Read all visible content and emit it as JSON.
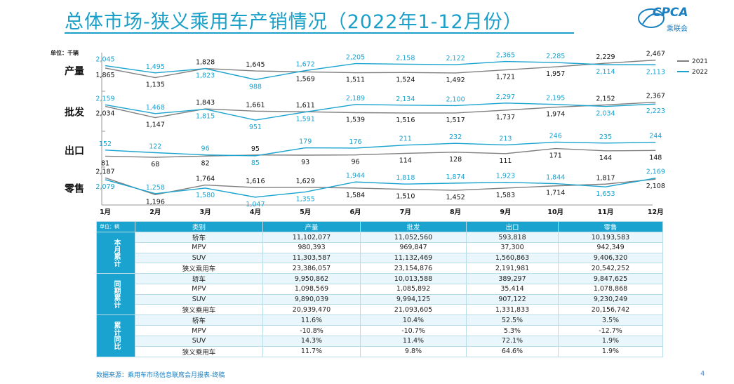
{
  "title": "总体市场-狭义乘用车产销情况（2022年1-12月份）",
  "logo": {
    "main": "CPCA",
    "sub": "乘联会"
  },
  "unit_top": "单位：千辆",
  "legend": [
    {
      "name": "2021",
      "color": "#7f7f7f"
    },
    {
      "name": "2022",
      "color": "#1aa3cf"
    }
  ],
  "months": [
    "1月",
    "2月",
    "3月",
    "4月",
    "5月",
    "6月",
    "7月",
    "8月",
    "9月",
    "10月",
    "11月",
    "12月"
  ],
  "chart_data": {
    "type": "line",
    "categories": [
      "1月",
      "2月",
      "3月",
      "4月",
      "5月",
      "6月",
      "7月",
      "8月",
      "9月",
      "10月",
      "11月",
      "12月"
    ],
    "panels": [
      {
        "label": "产量",
        "series": [
          {
            "name": "2021",
            "values": [
              1865,
              1135,
              1828,
              1645,
              1569,
              1511,
              1524,
              1492,
              1721,
              1957,
              2229,
              2467
            ]
          },
          {
            "name": "2022",
            "values": [
              2045,
              1495,
              1823,
              988,
              1672,
              2205,
              2158,
              2122,
              2365,
              2285,
              2114,
              2113
            ]
          }
        ]
      },
      {
        "label": "批发",
        "series": [
          {
            "name": "2021",
            "values": [
              2034,
              1147,
              1843,
              1661,
              1611,
              1539,
              1516,
              1517,
              1737,
              1974,
              2152,
              2367
            ]
          },
          {
            "name": "2022",
            "values": [
              2159,
              1468,
              1815,
              951,
              1591,
              2189,
              2134,
              2100,
              2297,
              2195,
              2034,
              2223
            ]
          }
        ]
      },
      {
        "label": "出口",
        "series": [
          {
            "name": "2021",
            "values": [
              81,
              68,
              82,
              95,
              93,
              96,
              114,
              128,
              111,
              171,
              144,
              148
            ]
          },
          {
            "name": "2022",
            "values": [
              152,
              122,
              96,
              85,
              179,
              176,
              211,
              232,
              213,
              246,
              235,
              244
            ]
          }
        ]
      },
      {
        "label": "零售",
        "series": [
          {
            "name": "2021",
            "values": [
              2187,
              1196,
              1764,
              1616,
              1629,
              1584,
              1510,
              1452,
              1583,
              1714,
              1817,
              2108
            ]
          },
          {
            "name": "2022",
            "values": [
              2079,
              1258,
              1580,
              1047,
              1355,
              1944,
              1818,
              1874,
              1923,
              1844,
              1653,
              2169
            ]
          }
        ]
      }
    ]
  },
  "table": {
    "unit": "单位：辆",
    "headers": [
      "类别",
      "产量",
      "批发",
      "出口",
      "零售"
    ],
    "groups": [
      {
        "label": "本月累计",
        "rows": [
          [
            "轿车",
            "11,102,077",
            "11,052,560",
            "593,818",
            "10,193,583"
          ],
          [
            "MPV",
            "980,393",
            "969,847",
            "37,300",
            "942,349"
          ],
          [
            "SUV",
            "11,303,587",
            "11,132,469",
            "1,560,863",
            "9,406,320"
          ],
          [
            "狭义乘用车",
            "23,386,057",
            "23,154,876",
            "2,191,981",
            "20,542,252"
          ]
        ]
      },
      {
        "label": "同期累计",
        "rows": [
          [
            "轿车",
            "9,950,862",
            "10,013,588",
            "389,297",
            "9,847,625"
          ],
          [
            "MPV",
            "1,098,569",
            "1,085,892",
            "35,414",
            "1,078,868"
          ],
          [
            "SUV",
            "9,890,039",
            "9,994,125",
            "907,122",
            "9,230,249"
          ],
          [
            "狭义乘用车",
            "20,939,470",
            "21,093,605",
            "1,331,833",
            "20,156,742"
          ]
        ]
      },
      {
        "label": "累计同比",
        "rows": [
          [
            "轿车",
            "11.6%",
            "10.4%",
            "52.5%",
            "3.5%"
          ],
          [
            "MPV",
            "-10.8%",
            "-10.7%",
            "5.3%",
            "-12.7%"
          ],
          [
            "SUV",
            "14.3%",
            "11.4%",
            "72.1%",
            "1.9%"
          ],
          [
            "狭义乘用车",
            "11.7%",
            "9.8%",
            "64.6%",
            "1.9%"
          ]
        ]
      }
    ]
  },
  "source": "数据来源：乘用车市场信息联席会月报表-终稿",
  "page_number": "4"
}
